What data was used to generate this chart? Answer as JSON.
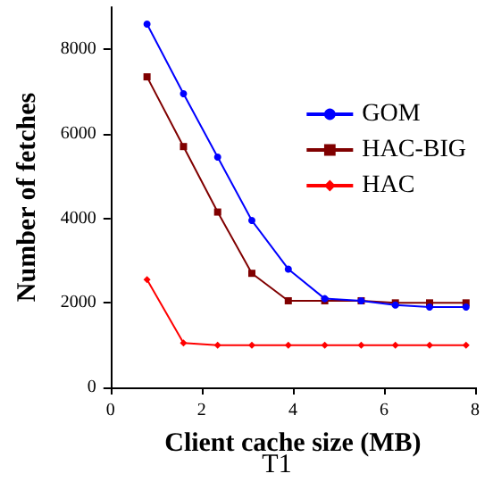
{
  "chart_data": {
    "type": "line",
    "title": "T1",
    "xlabel": "Client cache size (MB)",
    "ylabel": "Number of fetches",
    "x": [
      0.8,
      1.6,
      2.35,
      3.1,
      3.9,
      4.7,
      5.5,
      6.25,
      7.0,
      7.8
    ],
    "series": [
      {
        "name": "GOM",
        "color": "#0000ff",
        "marker": "circle",
        "values": [
          8600,
          6950,
          5450,
          3950,
          2800,
          2100,
          2050,
          1950,
          1900,
          1900
        ]
      },
      {
        "name": "HAC-BIG",
        "color": "#800000",
        "marker": "square",
        "values": [
          7350,
          5700,
          4150,
          2700,
          2050,
          2050,
          2050,
          2000,
          2000,
          2000
        ]
      },
      {
        "name": "HAC",
        "color": "#ff0000",
        "marker": "diamond",
        "values": [
          2550,
          1050,
          1000,
          1000,
          1000,
          1000,
          1000,
          1000,
          1000,
          1000
        ]
      }
    ],
    "xlim": [
      0,
      8
    ],
    "xticks": [
      0,
      2,
      4,
      6,
      8
    ],
    "ylim": [
      0,
      9000
    ],
    "yticks": [
      0,
      2000,
      4000,
      6000,
      8000
    ],
    "grid": false,
    "legend": "right",
    "line_style": "solid"
  }
}
